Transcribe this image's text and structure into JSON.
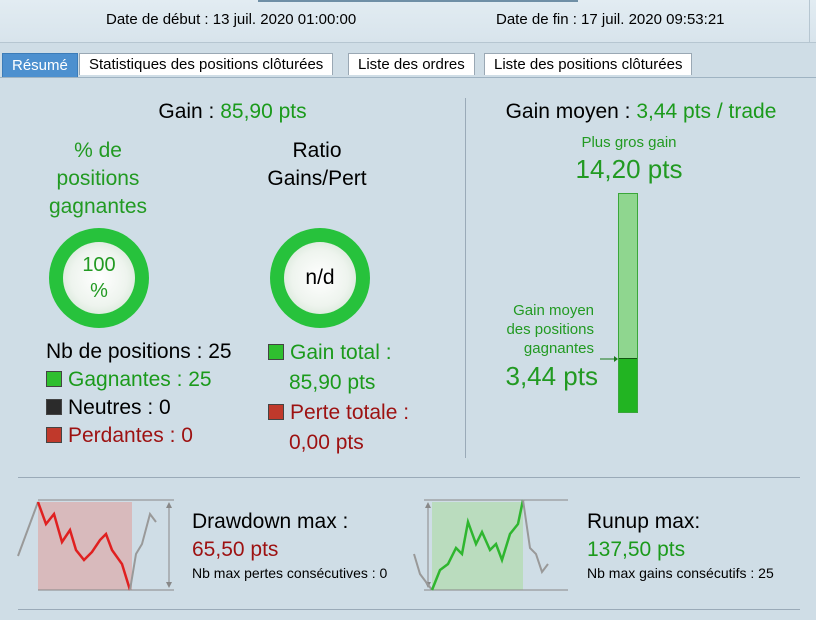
{
  "header": {
    "start": "Date de début : 13 juil. 2020 01:00:00",
    "end": "Date de fin : 17 juil. 2020 09:53:21"
  },
  "tabs": [
    {
      "label": "Résumé",
      "active": true
    },
    {
      "label": "Statistiques des positions clôturées",
      "active": false
    },
    {
      "label": "Liste des ordres",
      "active": false
    },
    {
      "label": "Liste des positions clôturées",
      "active": false
    }
  ],
  "gain": {
    "label": "Gain :",
    "value": "85,90 pts"
  },
  "winpct": {
    "line1": "% de",
    "line2": "positions",
    "line3": "gagnantes",
    "gauge_line1": "100",
    "gauge_line2": "%",
    "fraction": 1.0
  },
  "ratio": {
    "line1": "Ratio",
    "line2": "Gains/Pert",
    "gauge": "n/d"
  },
  "counts": {
    "total": "Nb de positions : 25",
    "winners": "Gagnantes : 25",
    "neutral": "Neutres : 0",
    "losers": "Perdantes : 0"
  },
  "totals": {
    "gain_label": "Gain total :",
    "gain_value": "85,90 pts",
    "loss_label": "Perte totale :",
    "loss_value": "0,00 pts"
  },
  "avg": {
    "label": "Gain moyen :",
    "value": "3,44 pts / trade",
    "biggest_label": "Plus gros gain",
    "biggest_value": "14,20 pts",
    "win_avg_line1": "Gain moyen",
    "win_avg_line2": "des positions",
    "win_avg_line3": "gagnantes",
    "win_avg_value": "3,44 pts",
    "fill_fraction": 0.242
  },
  "drawdown": {
    "label": "Drawdown max :",
    "value": "65,50 pts",
    "sub": "Nb max pertes consécutives : 0"
  },
  "runup": {
    "label": "Runup max:",
    "value": "137,50 pts",
    "sub": "Nb max gains consécutifs : 25"
  },
  "colors": {
    "green": "#1b9a1b",
    "red": "#9d1111",
    "tab_active": "#4d90cf"
  }
}
